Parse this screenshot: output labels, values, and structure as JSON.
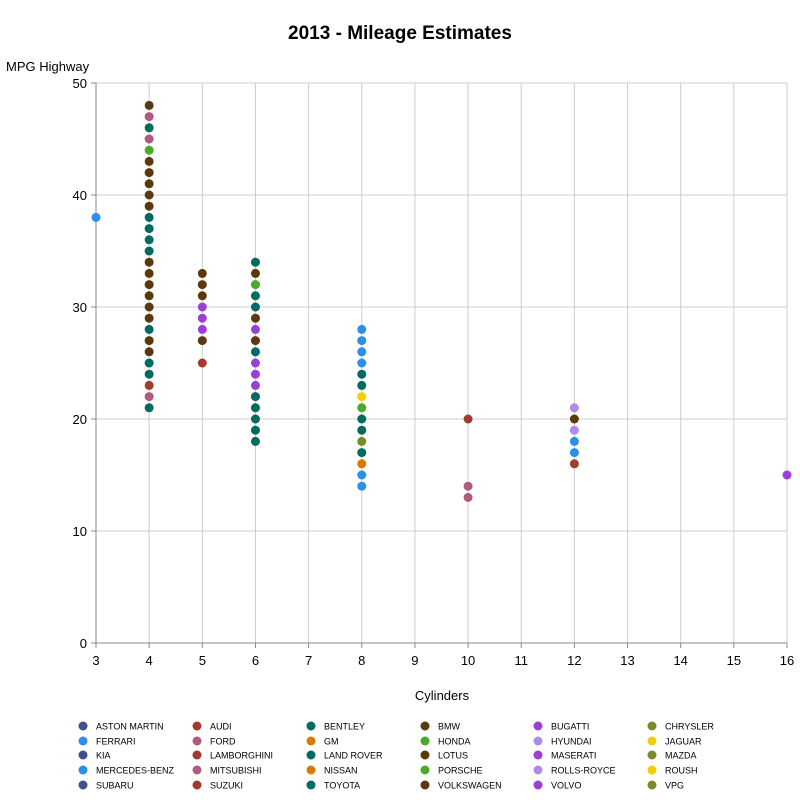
{
  "chart_data": {
    "type": "scatter",
    "title": "2013 - Mileage Estimates",
    "xlabel": "Cylinders",
    "ylabel": "MPG Highway",
    "xlim": [
      3,
      16
    ],
    "ylim": [
      0,
      50
    ],
    "xticks": [
      "3",
      "4",
      "5",
      "6",
      "7",
      "8",
      "9",
      "10",
      "11",
      "12",
      "13",
      "14",
      "15",
      "16"
    ],
    "yticks": [
      "0",
      "10",
      "20",
      "30",
      "40",
      "50"
    ],
    "grid": true,
    "legend_position": "bottom",
    "series": [
      {
        "name": "ASTON MARTIN",
        "color": "#3f4f8f",
        "points": []
      },
      {
        "name": "AUDI",
        "color": "#a23a2e",
        "points": []
      },
      {
        "name": "BENTLEY",
        "color": "#006b5f",
        "points": []
      },
      {
        "name": "BMW",
        "color": "#5a3a0c",
        "points": []
      },
      {
        "name": "BUGATTI",
        "color": "#9b3fd6",
        "points": []
      },
      {
        "name": "CHRYSLER",
        "color": "#7a8a2a",
        "points": []
      },
      {
        "name": "FERRARI",
        "color": "#2c8fe8",
        "points": []
      },
      {
        "name": "FORD",
        "color": "#b05a7e",
        "points": []
      },
      {
        "name": "GM",
        "color": "#d97a00",
        "points": []
      },
      {
        "name": "HONDA",
        "color": "#4aaa2a",
        "points": []
      },
      {
        "name": "HYUNDAI",
        "color": "#b08ae8",
        "points": []
      },
      {
        "name": "JAGUAR",
        "color": "#f0d000",
        "points": []
      },
      {
        "name": "KIA",
        "color": "#3f4f8f",
        "points": []
      },
      {
        "name": "LAMBORGHINI",
        "color": "#a23a2e",
        "points": [
          [
            10,
            20
          ],
          [
            12,
            16
          ]
        ]
      },
      {
        "name": "LAND ROVER",
        "color": "#006b5f",
        "points": []
      },
      {
        "name": "LOTUS",
        "color": "#5a3a0c",
        "points": []
      },
      {
        "name": "MASERATI",
        "color": "#9b3fd6",
        "points": []
      },
      {
        "name": "MAZDA",
        "color": "#7a8a2a",
        "points": []
      },
      {
        "name": "MERCEDES-BENZ",
        "color": "#2c8fe8",
        "points": [
          [
            3,
            38
          ],
          [
            8,
            28
          ],
          [
            8,
            27
          ],
          [
            8,
            26
          ],
          [
            8,
            25
          ],
          [
            8,
            15
          ],
          [
            8,
            14
          ],
          [
            12,
            18
          ],
          [
            12,
            17
          ]
        ]
      },
      {
        "name": "MITSUBISHI",
        "color": "#b05a7e",
        "points": [
          [
            4,
            47
          ],
          [
            4,
            45
          ],
          [
            4,
            22
          ],
          [
            10,
            14
          ],
          [
            10,
            13
          ]
        ]
      },
      {
        "name": "NISSAN",
        "color": "#d97a00",
        "points": [
          [
            8,
            16
          ]
        ]
      },
      {
        "name": "PORSCHE",
        "color": "#4aaa2a",
        "points": [
          [
            4,
            44
          ],
          [
            6,
            32
          ],
          [
            8,
            21
          ]
        ]
      },
      {
        "name": "ROLLS-ROYCE",
        "color": "#b08ae8",
        "points": [
          [
            12,
            21
          ],
          [
            12,
            19
          ]
        ]
      },
      {
        "name": "ROUSH",
        "color": "#f0d000",
        "points": [
          [
            8,
            22
          ]
        ]
      },
      {
        "name": "SUBARU",
        "color": "#3f4f8f",
        "points": []
      },
      {
        "name": "SUZUKI",
        "color": "#a23a2e",
        "points": [
          [
            4,
            23
          ],
          [
            5,
            25
          ]
        ]
      },
      {
        "name": "TOYOTA",
        "color": "#006b5f",
        "points": [
          [
            4,
            46
          ],
          [
            4,
            38
          ],
          [
            4,
            37
          ],
          [
            4,
            36
          ],
          [
            4,
            35
          ],
          [
            4,
            28
          ],
          [
            4,
            25
          ],
          [
            4,
            24
          ],
          [
            4,
            21
          ],
          [
            6,
            34
          ],
          [
            6,
            31
          ],
          [
            6,
            30
          ],
          [
            6,
            26
          ],
          [
            6,
            22
          ],
          [
            6,
            21
          ],
          [
            6,
            20
          ],
          [
            6,
            19
          ],
          [
            6,
            18
          ],
          [
            8,
            24
          ],
          [
            8,
            23
          ],
          [
            8,
            20
          ],
          [
            8,
            19
          ],
          [
            8,
            17
          ]
        ]
      },
      {
        "name": "VOLKSWAGEN",
        "color": "#5a3a0c",
        "points": [
          [
            4,
            48
          ],
          [
            4,
            43
          ],
          [
            4,
            42
          ],
          [
            4,
            41
          ],
          [
            4,
            40
          ],
          [
            4,
            39
          ],
          [
            4,
            34
          ],
          [
            4,
            33
          ],
          [
            4,
            32
          ],
          [
            4,
            31
          ],
          [
            4,
            30
          ],
          [
            4,
            29
          ],
          [
            4,
            27
          ],
          [
            4,
            26
          ],
          [
            5,
            33
          ],
          [
            5,
            32
          ],
          [
            5,
            31
          ],
          [
            5,
            27
          ],
          [
            6,
            33
          ],
          [
            6,
            29
          ],
          [
            6,
            27
          ],
          [
            12,
            20
          ]
        ]
      },
      {
        "name": "VOLVO",
        "color": "#9b3fd6",
        "points": [
          [
            5,
            30
          ],
          [
            5,
            29
          ],
          [
            5,
            28
          ],
          [
            6,
            28
          ],
          [
            6,
            25
          ],
          [
            6,
            24
          ],
          [
            6,
            23
          ],
          [
            16,
            15
          ]
        ]
      },
      {
        "name": "VPG",
        "color": "#7a8a2a",
        "points": [
          [
            8,
            18
          ]
        ]
      }
    ]
  }
}
